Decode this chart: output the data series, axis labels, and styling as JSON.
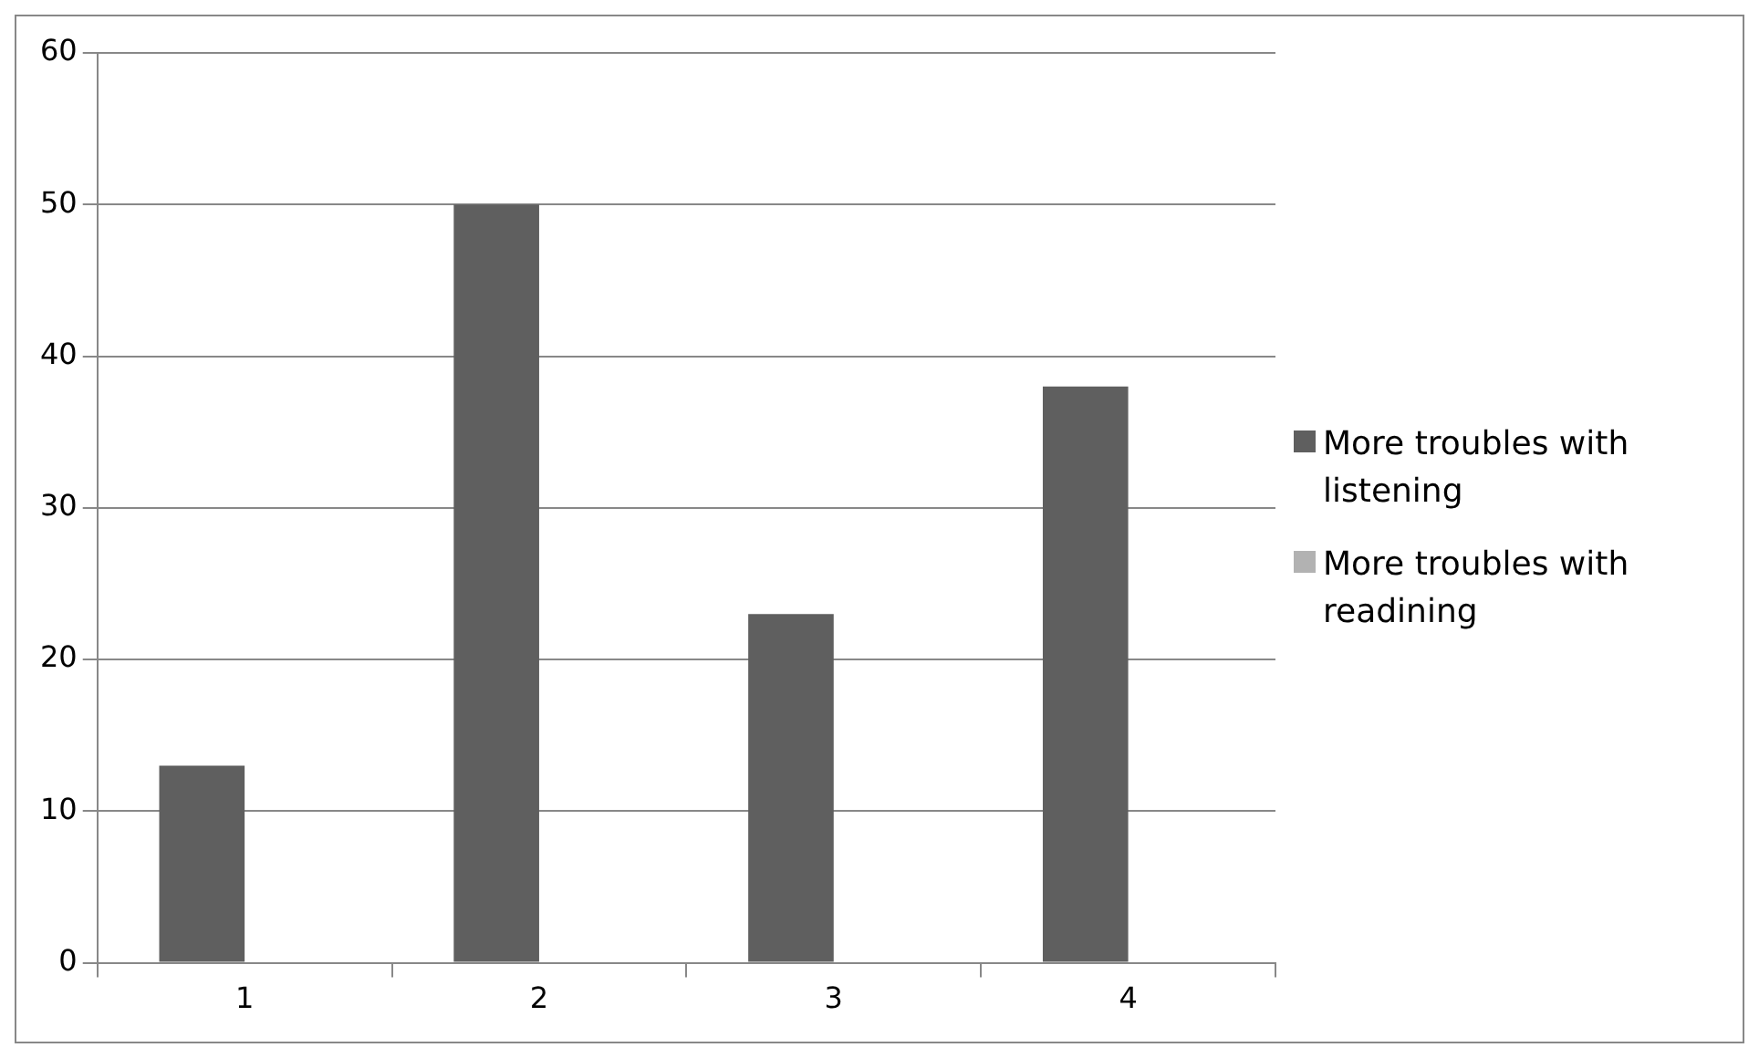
{
  "chart_data": {
    "type": "bar",
    "categories": [
      "1",
      "2",
      "3",
      "4"
    ],
    "series": [
      {
        "name": "More troubles with listening",
        "color": "#5f5f5f",
        "values": [
          13,
          50,
          23,
          38
        ]
      },
      {
        "name": "More troubles with readining",
        "color": "#b2b2b2",
        "values": [
          null,
          null,
          null,
          null
        ]
      }
    ],
    "ylim": [
      0,
      60
    ],
    "yticks": [
      0,
      10,
      20,
      30,
      40,
      50,
      60
    ],
    "grid": "y",
    "legend": "right"
  }
}
